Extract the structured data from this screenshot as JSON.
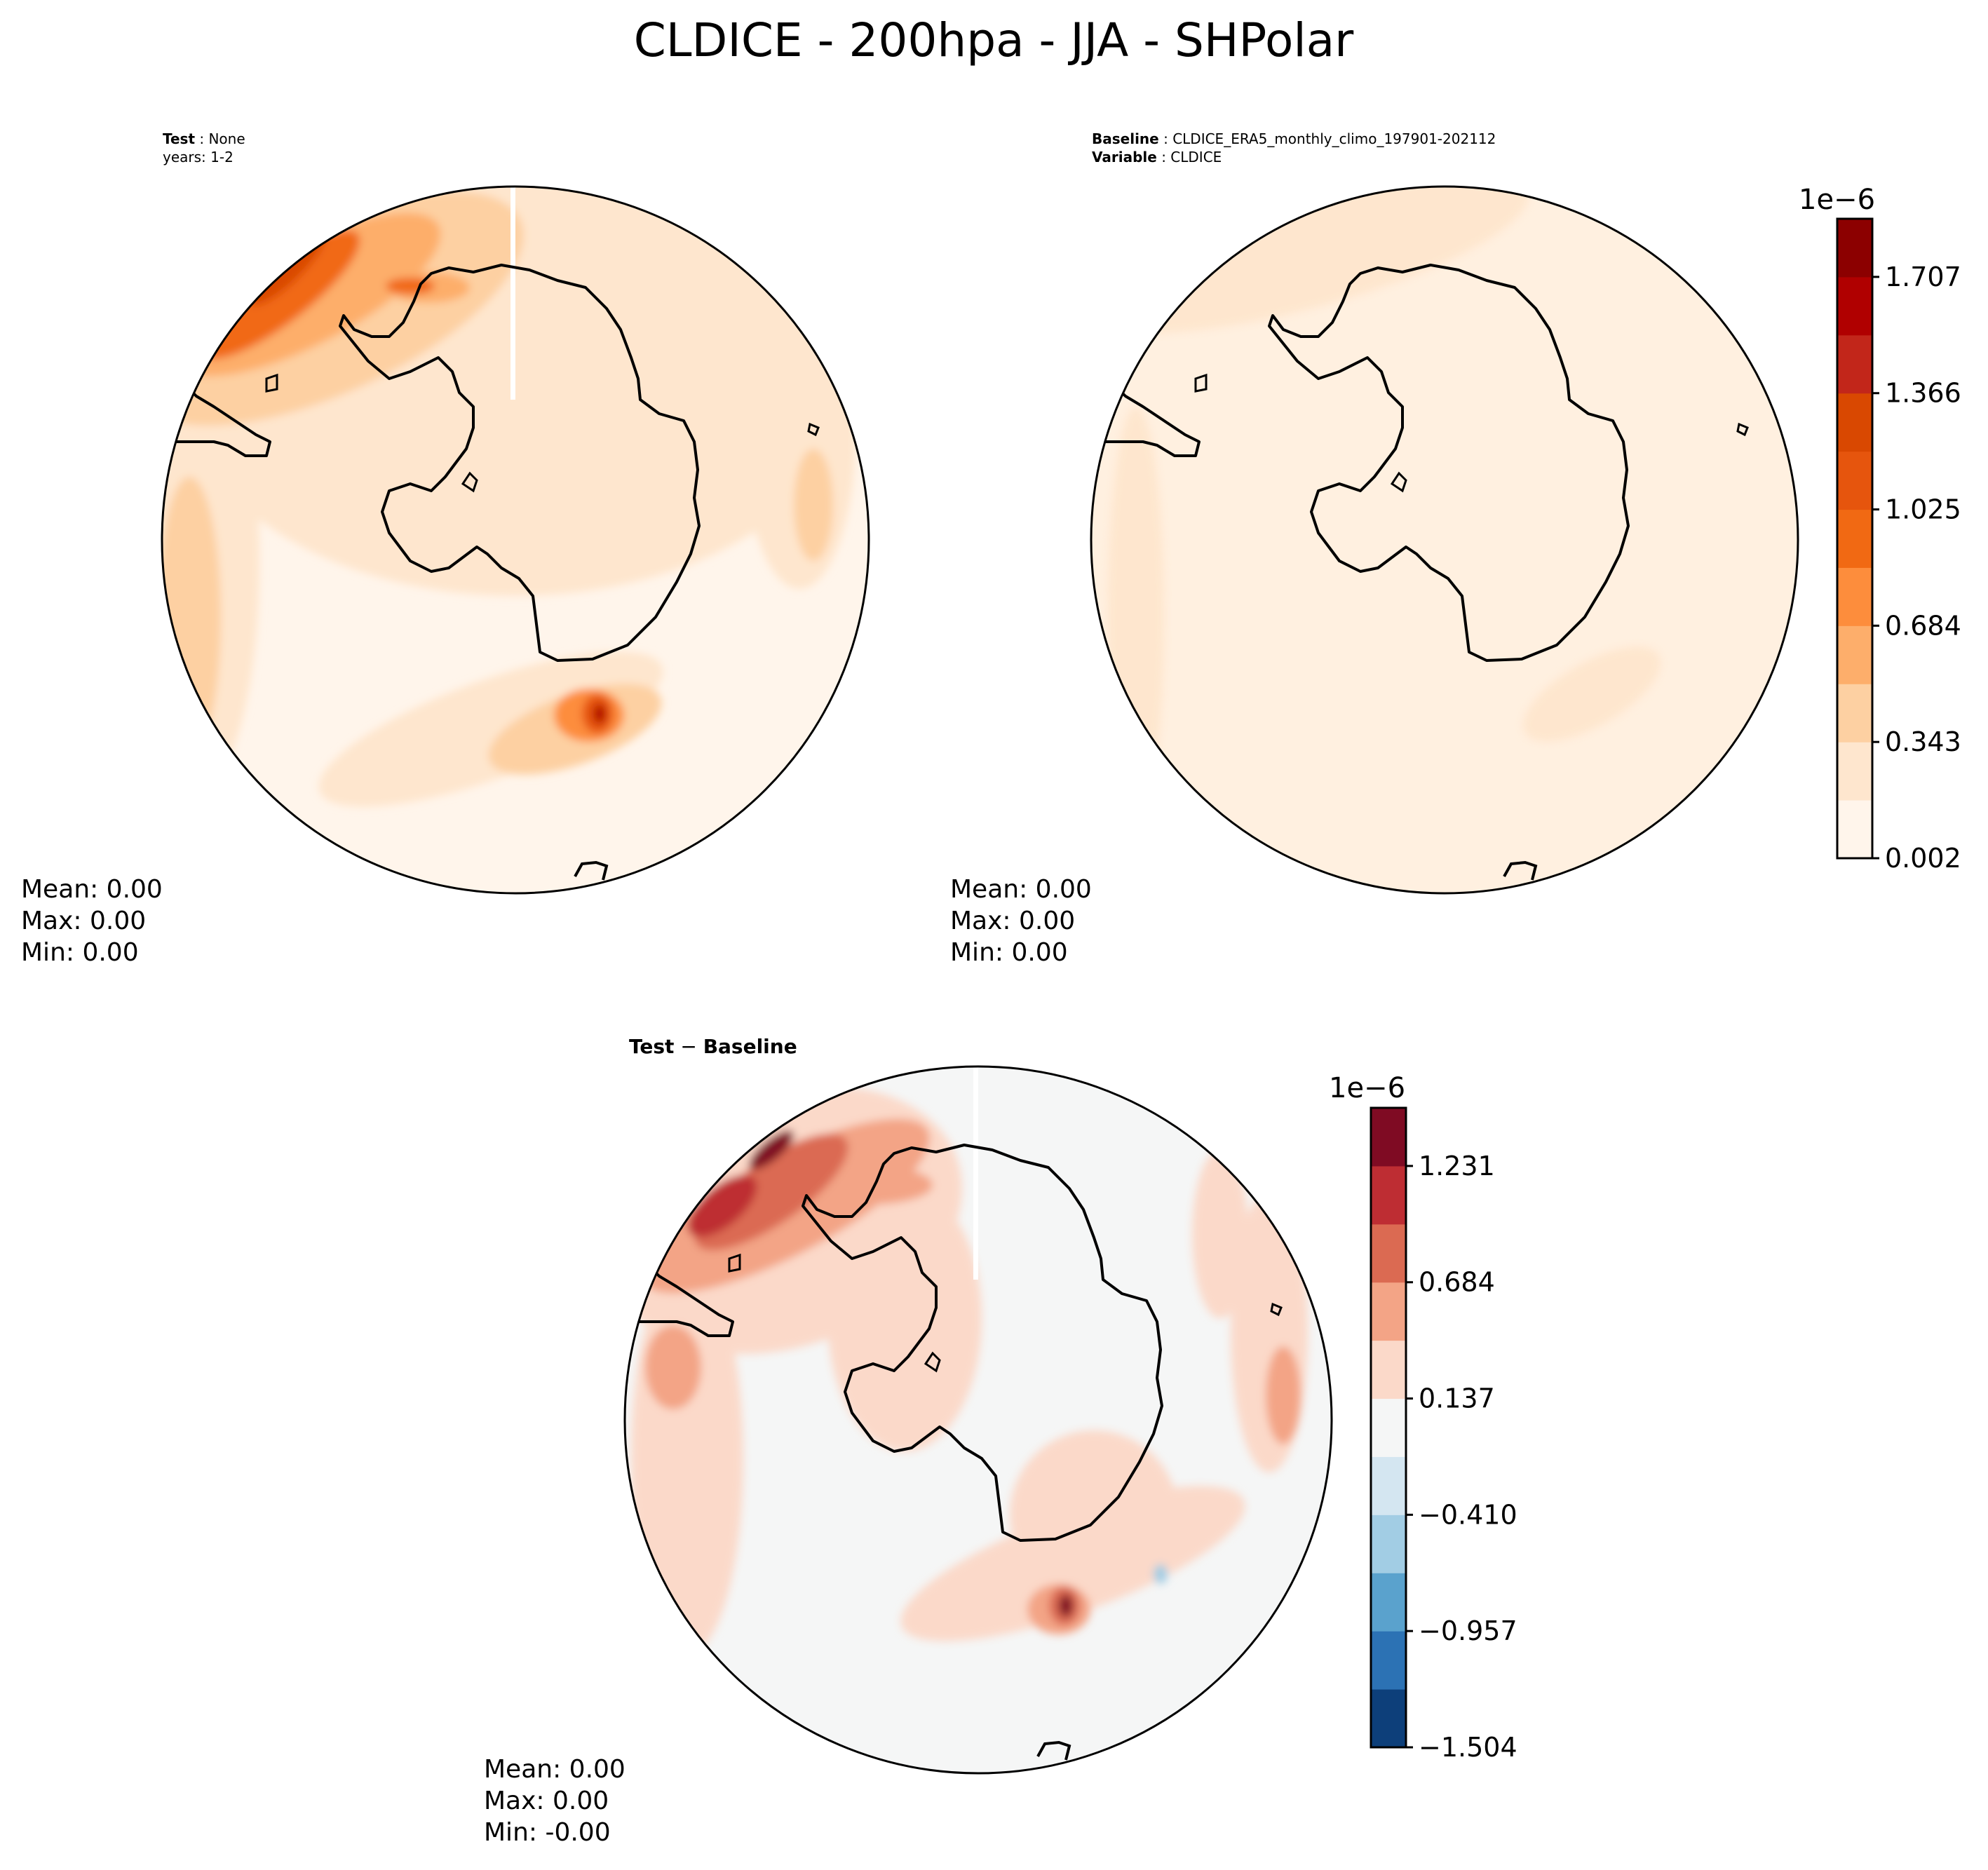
{
  "title": "CLDICE - 200hpa - JJA - SHPolar",
  "panels": {
    "test": {
      "header_line1_bold": "Test",
      "header_line1_rest": " : None",
      "header_line2": "years: 1-2",
      "stats": {
        "mean": "Mean:  0.00",
        "max": "Max:  0.00",
        "min": "Min:  0.00"
      }
    },
    "baseline": {
      "header_line1_bold": "Baseline",
      "header_line1_rest": " : CLDICE_ERA5_monthly_climo_197901-202112",
      "header_line2_bold": "Variable",
      "header_line2_rest": " : CLDICE",
      "stats": {
        "mean": "Mean:  0.00",
        "max": "Max:  0.00",
        "min": "Min:  0.00"
      }
    },
    "diff": {
      "header_bold_a": "Test",
      "header_mid": " − ",
      "header_bold_b": "Baseline",
      "stats": {
        "mean": "Mean:  0.00",
        "max": "Max:  0.00",
        "min": "Min: -0.00"
      }
    }
  },
  "colorbars": {
    "sequential": {
      "exponent": "1e−6",
      "ticks": [
        "0.002",
        "0.343",
        "0.684",
        "1.025",
        "1.366",
        "1.707"
      ],
      "colors": [
        "#fff5eb",
        "#fee6ce",
        "#fdd0a2",
        "#fdae6b",
        "#fd8d3c",
        "#f16913",
        "#e6550d",
        "#d94801",
        "#c2261a",
        "#b00000",
        "#8c0000"
      ]
    },
    "diverging": {
      "exponent": "1e−6",
      "ticks": [
        "−1.504",
        "−0.957",
        "−0.410",
        "0.137",
        "0.684",
        "1.231"
      ],
      "colors": [
        "#0d3f7a",
        "#2c72b4",
        "#5aa2cd",
        "#a2cde4",
        "#d4e6f1",
        "#f5f6f6",
        "#fbd9c9",
        "#f3a486",
        "#db6a52",
        "#be2d33",
        "#7f0b23"
      ]
    }
  }
}
